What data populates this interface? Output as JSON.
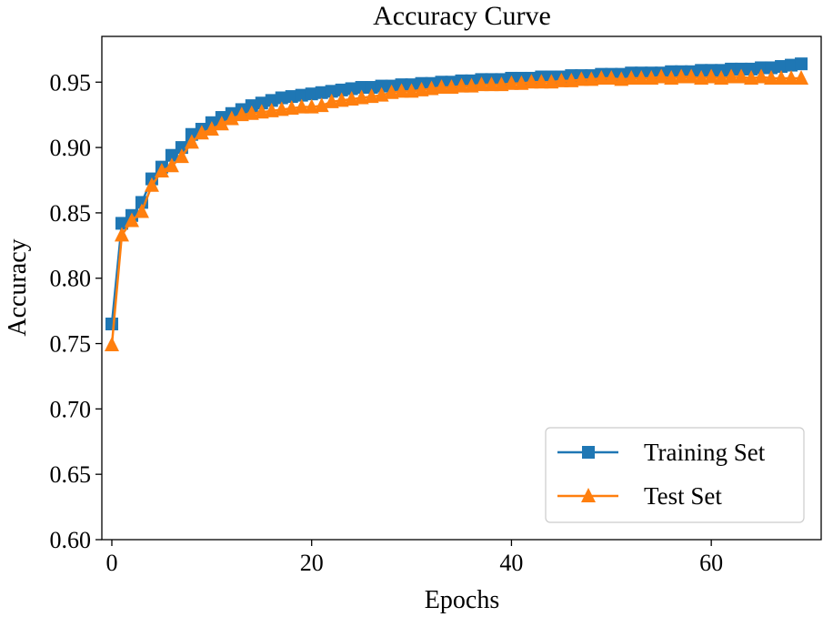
{
  "chart_data": {
    "type": "line",
    "title": "Accuracy Curve",
    "xlabel": "Epochs",
    "ylabel": "Accuracy",
    "xlim": [
      -1,
      71
    ],
    "ylim": [
      0.6,
      0.985
    ],
    "xticks": [
      0,
      20,
      40,
      60
    ],
    "xtick_labels": [
      "0",
      "20",
      "40",
      "60"
    ],
    "yticks": [
      0.6,
      0.65,
      0.7,
      0.75,
      0.8,
      0.85,
      0.9,
      0.95
    ],
    "ytick_labels": [
      "0.60",
      "0.65",
      "0.70",
      "0.75",
      "0.80",
      "0.85",
      "0.90",
      "0.95"
    ],
    "grid": false,
    "legend_position": "lower-right",
    "series": [
      {
        "name": "Training Set",
        "color": "#1f77b4",
        "marker": "square",
        "x": [
          0,
          1,
          2,
          3,
          4,
          5,
          6,
          7,
          8,
          9,
          10,
          11,
          12,
          13,
          14,
          15,
          16,
          17,
          18,
          19,
          20,
          21,
          22,
          23,
          24,
          25,
          26,
          27,
          28,
          29,
          30,
          31,
          32,
          33,
          34,
          35,
          36,
          37,
          38,
          39,
          40,
          41,
          42,
          43,
          44,
          45,
          46,
          47,
          48,
          49,
          50,
          51,
          52,
          53,
          54,
          55,
          56,
          57,
          58,
          59,
          60,
          61,
          62,
          63,
          64,
          65,
          66,
          67,
          68,
          69
        ],
        "values": [
          0.765,
          0.842,
          0.848,
          0.858,
          0.876,
          0.885,
          0.894,
          0.9,
          0.91,
          0.914,
          0.919,
          0.923,
          0.926,
          0.929,
          0.932,
          0.934,
          0.936,
          0.938,
          0.939,
          0.94,
          0.941,
          0.942,
          0.943,
          0.944,
          0.945,
          0.946,
          0.946,
          0.947,
          0.947,
          0.948,
          0.948,
          0.949,
          0.949,
          0.95,
          0.95,
          0.951,
          0.951,
          0.952,
          0.952,
          0.952,
          0.953,
          0.953,
          0.953,
          0.954,
          0.954,
          0.954,
          0.955,
          0.955,
          0.955,
          0.956,
          0.956,
          0.956,
          0.957,
          0.957,
          0.957,
          0.957,
          0.958,
          0.958,
          0.958,
          0.959,
          0.959,
          0.959,
          0.96,
          0.96,
          0.96,
          0.961,
          0.961,
          0.962,
          0.963,
          0.964
        ]
      },
      {
        "name": "Test Set",
        "color": "#ff7f0e",
        "marker": "triangle",
        "x": [
          0,
          1,
          2,
          3,
          4,
          5,
          6,
          7,
          8,
          9,
          10,
          11,
          12,
          13,
          14,
          15,
          16,
          17,
          18,
          19,
          20,
          21,
          22,
          23,
          24,
          25,
          26,
          27,
          28,
          29,
          30,
          31,
          32,
          33,
          34,
          35,
          36,
          37,
          38,
          39,
          40,
          41,
          42,
          43,
          44,
          45,
          46,
          47,
          48,
          49,
          50,
          51,
          52,
          53,
          54,
          55,
          56,
          57,
          58,
          59,
          60,
          61,
          62,
          63,
          64,
          65,
          66,
          67,
          68,
          69
        ],
        "values": [
          0.749,
          0.833,
          0.844,
          0.851,
          0.871,
          0.882,
          0.886,
          0.893,
          0.904,
          0.911,
          0.914,
          0.918,
          0.922,
          0.925,
          0.926,
          0.927,
          0.928,
          0.929,
          0.93,
          0.931,
          0.931,
          0.932,
          0.935,
          0.936,
          0.937,
          0.938,
          0.939,
          0.94,
          0.942,
          0.943,
          0.943,
          0.944,
          0.945,
          0.946,
          0.946,
          0.947,
          0.947,
          0.948,
          0.948,
          0.948,
          0.949,
          0.949,
          0.95,
          0.95,
          0.95,
          0.951,
          0.951,
          0.952,
          0.952,
          0.953,
          0.953,
          0.952,
          0.953,
          0.953,
          0.953,
          0.954,
          0.953,
          0.954,
          0.954,
          0.953,
          0.954,
          0.953,
          0.954,
          0.954,
          0.953,
          0.954,
          0.953,
          0.953,
          0.953,
          0.953
        ]
      }
    ]
  }
}
